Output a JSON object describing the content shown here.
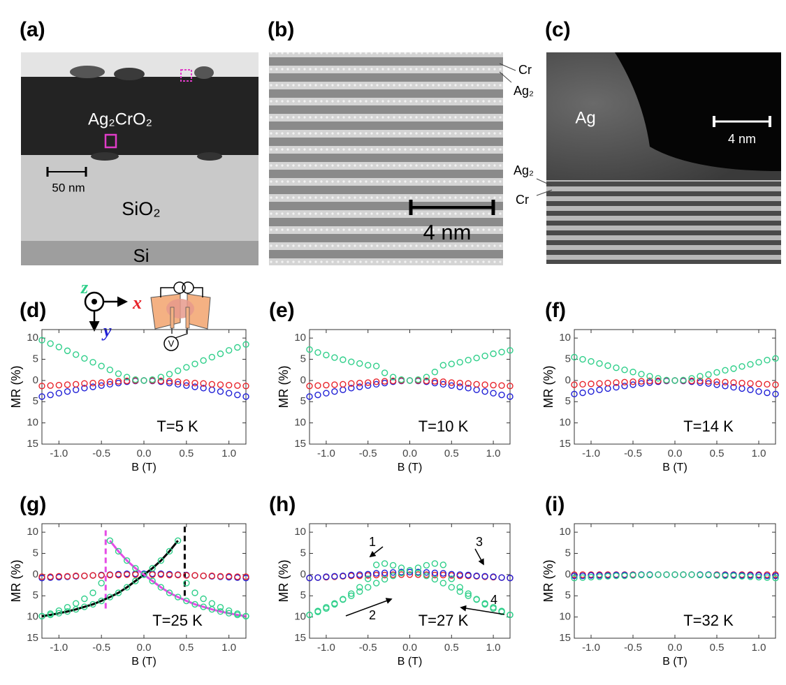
{
  "images": {
    "a": {
      "label": "(a)",
      "film": "Ag₂CrO₂",
      "scale": "50 nm",
      "substrate": "SiO₂",
      "base": "Si"
    },
    "b": {
      "label": "(b)",
      "layers": [
        "Cr",
        "Ag₂"
      ],
      "scale": "4 nm"
    },
    "c": {
      "label": "(c)",
      "metal": "Ag",
      "scale": "4 nm",
      "layers": [
        "Ag₂",
        "Cr"
      ]
    }
  },
  "chart_data": [
    {
      "type": "scatter",
      "label": "(d)",
      "annotation": "T=5 K",
      "ylabel": "MR (%)",
      "xlabel": "B (T)",
      "inset_labels": [
        "z",
        "x",
        "y",
        "V"
      ],
      "xlim": [
        -1.2,
        1.2
      ],
      "ylim": [
        -15,
        12
      ],
      "xticks": [
        {
          "value": -1,
          "label": "-1.0"
        },
        -0.5,
        {
          "value": 0,
          "label": "0.0"
        },
        0.5,
        {
          "value": 1,
          "label": "1.0"
        }
      ],
      "yticks": [
        10,
        5,
        0,
        {
          "value": -5,
          "label": "5"
        },
        {
          "value": -10,
          "label": "10"
        },
        {
          "value": -15,
          "label": "15"
        }
      ],
      "x": [
        -1.2,
        -1.1,
        -1.0,
        -0.9,
        -0.8,
        -0.7,
        -0.6,
        -0.5,
        -0.4,
        -0.3,
        -0.2,
        -0.1,
        0,
        0.1,
        0.2,
        0.3,
        0.4,
        0.5,
        0.6,
        0.7,
        0.8,
        0.9,
        1.0,
        1.1,
        1.2
      ],
      "series": [
        {
          "color": "#1f1fd6",
          "values": [
            -3.8,
            -3.4,
            -3.0,
            -2.6,
            -2.2,
            -1.8,
            -1.5,
            -1.2,
            -0.9,
            -0.6,
            -0.3,
            -0.1,
            0,
            -0.1,
            -0.3,
            -0.6,
            -0.9,
            -1.2,
            -1.5,
            -1.8,
            -2.2,
            -2.6,
            -3.0,
            -3.4,
            -3.8
          ]
        },
        {
          "color": "#e8232a",
          "values": [
            -1.3,
            -1.2,
            -1.1,
            -1.0,
            -0.9,
            -0.7,
            -0.6,
            -0.5,
            -0.3,
            -0.2,
            -0.1,
            0,
            0,
            0,
            -0.1,
            -0.2,
            -0.3,
            -0.5,
            -0.6,
            -0.7,
            -0.9,
            -1.0,
            -1.1,
            -1.2,
            -1.3
          ]
        },
        {
          "color": "#2fcf8a",
          "values": [
            9.5,
            8.7,
            7.9,
            7.0,
            6.1,
            5.2,
            4.3,
            3.4,
            2.5,
            1.6,
            0.8,
            0.2,
            0,
            0.2,
            0.8,
            1.5,
            2.3,
            3.1,
            3.9,
            4.7,
            5.5,
            6.3,
            7.1,
            7.8,
            8.5
          ]
        }
      ]
    },
    {
      "type": "scatter",
      "label": "(e)",
      "annotation": "T=10 K",
      "ylabel": "MR (%)",
      "xlabel": "B (T)",
      "xlim": [
        -1.2,
        1.2
      ],
      "ylim": [
        -15,
        12
      ],
      "xticks": [
        {
          "value": -1,
          "label": "-1.0"
        },
        -0.5,
        {
          "value": 0,
          "label": "0.0"
        },
        0.5,
        {
          "value": 1,
          "label": "1.0"
        }
      ],
      "yticks": [
        10,
        5,
        0,
        {
          "value": -5,
          "label": "5"
        },
        {
          "value": -10,
          "label": "10"
        },
        {
          "value": -15,
          "label": "15"
        }
      ],
      "x": [
        -1.2,
        -1.1,
        -1.0,
        -0.9,
        -0.8,
        -0.7,
        -0.6,
        -0.5,
        -0.4,
        -0.3,
        -0.2,
        -0.1,
        0,
        0.1,
        0.2,
        0.3,
        0.4,
        0.5,
        0.6,
        0.7,
        0.8,
        0.9,
        1.0,
        1.1,
        1.2
      ],
      "series": [
        {
          "color": "#1f1fd6",
          "values": [
            -3.8,
            -3.4,
            -3.0,
            -2.6,
            -2.2,
            -1.8,
            -1.5,
            -1.2,
            -0.9,
            -0.6,
            -0.3,
            -0.1,
            0,
            -0.1,
            -0.3,
            -0.6,
            -0.9,
            -1.2,
            -1.5,
            -1.8,
            -2.2,
            -2.6,
            -3.0,
            -3.4,
            -3.8
          ]
        },
        {
          "color": "#e8232a",
          "values": [
            -1.3,
            -1.2,
            -1.1,
            -1.0,
            -0.9,
            -0.7,
            -0.6,
            -0.5,
            -0.3,
            -0.2,
            -0.1,
            0,
            0,
            0,
            -0.1,
            -0.2,
            -0.3,
            -0.5,
            -0.6,
            -0.7,
            -0.9,
            -1.0,
            -1.1,
            -1.2,
            -1.3
          ]
        },
        {
          "color": "#2fcf8a",
          "values": [
            7.3,
            6.6,
            6.0,
            5.4,
            4.9,
            4.4,
            4.0,
            3.6,
            3.4,
            1.8,
            0.8,
            0.2,
            0,
            0.2,
            0.8,
            2.0,
            3.6,
            3.9,
            4.3,
            4.8,
            5.3,
            5.8,
            6.3,
            6.7,
            7.1
          ]
        }
      ]
    },
    {
      "type": "scatter",
      "label": "(f)",
      "annotation": "T=14 K",
      "ylabel": "MR (%)",
      "xlabel": "B (T)",
      "xlim": [
        -1.2,
        1.2
      ],
      "ylim": [
        -15,
        12
      ],
      "xticks": [
        {
          "value": -1,
          "label": "-1.0"
        },
        -0.5,
        {
          "value": 0,
          "label": "0.0"
        },
        0.5,
        {
          "value": 1,
          "label": "1.0"
        }
      ],
      "yticks": [
        10,
        5,
        0,
        {
          "value": -5,
          "label": "5"
        },
        {
          "value": -10,
          "label": "10"
        },
        {
          "value": -15,
          "label": "15"
        }
      ],
      "x": [
        -1.2,
        -1.1,
        -1.0,
        -0.9,
        -0.8,
        -0.7,
        -0.6,
        -0.5,
        -0.4,
        -0.3,
        -0.2,
        -0.1,
        0,
        0.1,
        0.2,
        0.3,
        0.4,
        0.5,
        0.6,
        0.7,
        0.8,
        0.9,
        1.0,
        1.1,
        1.2
      ],
      "series": [
        {
          "color": "#1f1fd6",
          "values": [
            -3.2,
            -2.9,
            -2.6,
            -2.2,
            -1.9,
            -1.6,
            -1.3,
            -1.0,
            -0.7,
            -0.5,
            -0.3,
            -0.1,
            0,
            -0.1,
            -0.3,
            -0.5,
            -0.7,
            -1.0,
            -1.3,
            -1.6,
            -1.9,
            -2.2,
            -2.6,
            -2.9,
            -3.2
          ]
        },
        {
          "color": "#e8232a",
          "values": [
            -1.0,
            -0.9,
            -0.8,
            -0.7,
            -0.6,
            -0.5,
            -0.4,
            -0.3,
            -0.2,
            -0.1,
            -0.1,
            0,
            0,
            0,
            -0.1,
            -0.1,
            -0.2,
            -0.3,
            -0.4,
            -0.5,
            -0.6,
            -0.7,
            -0.8,
            -0.9,
            -1.0
          ]
        },
        {
          "color": "#2fcf8a",
          "values": [
            5.5,
            5.0,
            4.5,
            4.0,
            3.5,
            3.0,
            2.5,
            2.0,
            1.5,
            1.0,
            0.5,
            0.1,
            0,
            0.1,
            0.5,
            1.0,
            1.4,
            1.9,
            2.4,
            2.8,
            3.3,
            3.8,
            4.3,
            4.8,
            5.2
          ]
        }
      ]
    },
    {
      "type": "scatter",
      "label": "(g)",
      "annotation": "T=25 K",
      "ylabel": "MR (%)",
      "xlabel": "B (T)",
      "xlim": [
        -1.2,
        1.2
      ],
      "ylim": [
        -15,
        12
      ],
      "xticks": [
        {
          "value": -1,
          "label": "-1.0"
        },
        -0.5,
        {
          "value": 0,
          "label": "0.0"
        },
        0.5,
        {
          "value": 1,
          "label": "1.0"
        }
      ],
      "yticks": [
        10,
        5,
        0,
        {
          "value": -5,
          "label": "5"
        },
        {
          "value": -10,
          "label": "10"
        },
        {
          "value": -15,
          "label": "15"
        }
      ],
      "x": [
        -1.2,
        -1.1,
        -1.0,
        -0.9,
        -0.8,
        -0.7,
        -0.6,
        -0.5,
        -0.4,
        -0.3,
        -0.2,
        -0.1,
        0,
        0.1,
        0.2,
        0.3,
        0.4,
        0.5,
        0.6,
        0.7,
        0.8,
        0.9,
        1.0,
        1.1,
        1.2
      ],
      "vlines": [
        {
          "x": -0.45,
          "y": [
            -8,
            11
          ],
          "color": "#e64ce6"
        },
        {
          "x": 0.48,
          "y": [
            -5,
            12
          ],
          "color": "#000000"
        }
      ],
      "series": [
        {
          "color": "#1f1fd6",
          "values": [
            -0.8,
            -0.7,
            -0.6,
            -0.5,
            -0.4,
            -0.3,
            -0.2,
            -0.1,
            0,
            0.1,
            0.2,
            0.2,
            0.2,
            0.2,
            0.2,
            0.1,
            0,
            -0.1,
            -0.2,
            -0.3,
            -0.4,
            -0.5,
            -0.6,
            -0.7,
            -0.8
          ]
        },
        {
          "color": "#e8232a",
          "values": [
            -0.5,
            -0.5,
            -0.4,
            -0.4,
            -0.3,
            -0.3,
            -0.2,
            -0.2,
            -0.1,
            -0.1,
            0,
            0,
            0,
            0,
            0,
            -0.1,
            -0.1,
            -0.2,
            -0.2,
            -0.3,
            -0.3,
            -0.4,
            -0.4,
            -0.5,
            -0.5
          ]
        },
        {
          "color": "#000000",
          "style": "line",
          "values": [
            -9.8,
            -9.5,
            -9.1,
            -8.7,
            -8.2,
            -7.6,
            -7.0,
            -6.2,
            -5.3,
            -4.3,
            -3.0,
            -1.5,
            0,
            1.5,
            3.3,
            5.5,
            8.0,
            null,
            null,
            null,
            null,
            null,
            null,
            null,
            null
          ]
        },
        {
          "color": "#e64ce6",
          "style": "line",
          "values": [
            null,
            null,
            null,
            null,
            null,
            null,
            null,
            null,
            8.0,
            5.5,
            3.3,
            1.5,
            0,
            -1.5,
            -3.0,
            -4.3,
            -5.3,
            -6.2,
            -7.0,
            -7.6,
            -8.2,
            -8.7,
            -9.1,
            -9.5,
            -9.8
          ]
        },
        {
          "color": "#2fcf8a",
          "values": [
            -9.8,
            -9.2,
            -8.5,
            -7.7,
            -6.8,
            -5.7,
            -4.3,
            -2.0,
            8.0,
            5.5,
            3.3,
            1.5,
            0,
            -1.5,
            -3.0,
            -4.3,
            -5.3,
            -6.2,
            -7.0,
            -7.6,
            -8.2,
            -8.7,
            -9.1,
            -9.5,
            -9.8
          ]
        },
        {
          "color": "#2fcf8a",
          "values": [
            -9.8,
            -9.5,
            -9.1,
            -8.7,
            -8.2,
            -7.6,
            -7.0,
            -6.2,
            -5.3,
            -4.3,
            -3.0,
            -1.5,
            0,
            1.5,
            3.3,
            5.5,
            8.0,
            -2.0,
            -4.3,
            -5.7,
            -6.8,
            -7.7,
            -8.5,
            -9.2,
            -9.8
          ]
        }
      ]
    },
    {
      "type": "scatter",
      "label": "(h)",
      "annotation": "T=27 K",
      "ylabel": "MR (%)",
      "xlabel": "B (T)",
      "arrow_labels": [
        "1",
        "2",
        "3",
        "4"
      ],
      "xlim": [
        -1.2,
        1.2
      ],
      "ylim": [
        -15,
        12
      ],
      "xticks": [
        {
          "value": -1,
          "label": "-1.0"
        },
        -0.5,
        {
          "value": 0,
          "label": "0.0"
        },
        0.5,
        {
          "value": 1,
          "label": "1.0"
        }
      ],
      "yticks": [
        10,
        5,
        0,
        {
          "value": -5,
          "label": "5"
        },
        {
          "value": -10,
          "label": "10"
        },
        {
          "value": -15,
          "label": "15"
        }
      ],
      "x": [
        -1.2,
        -1.1,
        -1.0,
        -0.9,
        -0.8,
        -0.7,
        -0.6,
        -0.5,
        -0.4,
        -0.3,
        -0.2,
        -0.1,
        0,
        0.1,
        0.2,
        0.3,
        0.4,
        0.5,
        0.6,
        0.7,
        0.8,
        0.9,
        1.0,
        1.1,
        1.2
      ],
      "series": [
        {
          "color": "#e8232a",
          "values": [
            -0.8,
            -0.7,
            -0.6,
            -0.5,
            -0.4,
            -0.3,
            -0.3,
            -0.2,
            -0.1,
            -0.1,
            0,
            0,
            0,
            0,
            0,
            -0.1,
            -0.1,
            -0.2,
            -0.3,
            -0.3,
            -0.4,
            -0.5,
            -0.6,
            -0.7,
            -0.8
          ]
        },
        {
          "color": "#1f1fd6",
          "values": [
            -0.8,
            -0.7,
            -0.5,
            -0.4,
            -0.3,
            -0.1,
            0,
            0.1,
            0.3,
            0.4,
            0.5,
            0.6,
            0.6,
            0.6,
            0.5,
            0.4,
            0.3,
            0.1,
            0,
            -0.1,
            -0.3,
            -0.4,
            -0.5,
            -0.7,
            -0.8
          ]
        },
        {
          "color": "#2fcf8a",
          "values": [
            -9.5,
            -8.6,
            -7.7,
            -6.8,
            -5.9,
            -5.0,
            -4.0,
            -3.0,
            -2.0,
            -1.1,
            -0.3,
            0.4,
            1.0,
            1.6,
            2.2,
            2.6,
            2.3,
            -1.0,
            -3.0,
            -4.5,
            -5.8,
            -7.0,
            -8.0,
            -8.8,
            -9.5
          ]
        },
        {
          "color": "#2fcf8a",
          "values": [
            -9.5,
            -8.8,
            -8.0,
            -7.0,
            -5.8,
            -4.5,
            -3.0,
            -1.0,
            2.3,
            2.6,
            2.2,
            1.6,
            1.0,
            0.4,
            -0.3,
            -1.1,
            -2.0,
            -3.0,
            -4.0,
            -5.0,
            -5.9,
            -6.8,
            -7.7,
            -8.6,
            -9.5
          ]
        }
      ]
    },
    {
      "type": "scatter",
      "label": "(i)",
      "annotation": "T=32 K",
      "ylabel": "MR (%)",
      "xlabel": "B (T)",
      "xlim": [
        -1.2,
        1.2
      ],
      "ylim": [
        -15,
        12
      ],
      "xticks": [
        {
          "value": -1,
          "label": "-1.0"
        },
        -0.5,
        {
          "value": 0,
          "label": "0.0"
        },
        0.5,
        {
          "value": 1,
          "label": "1.0"
        }
      ],
      "yticks": [
        10,
        5,
        0,
        {
          "value": -5,
          "label": "5"
        },
        {
          "value": -10,
          "label": "10"
        },
        {
          "value": -15,
          "label": "15"
        }
      ],
      "x": [
        -1.2,
        -1.1,
        -1.0,
        -0.9,
        -0.8,
        -0.7,
        -0.6,
        -0.5,
        -0.4,
        -0.3,
        -0.2,
        -0.1,
        0,
        0.1,
        0.2,
        0.3,
        0.4,
        0.5,
        0.6,
        0.7,
        0.8,
        0.9,
        1.0,
        1.1,
        1.2
      ],
      "series": [
        {
          "color": "#e8232a",
          "values": [
            0,
            0,
            0,
            0,
            0,
            0,
            0,
            0,
            0,
            0,
            0,
            0,
            0,
            0,
            0,
            0,
            0,
            0,
            0,
            0,
            0,
            0,
            0,
            0,
            0
          ]
        },
        {
          "color": "#1f1fd6",
          "values": [
            -0.3,
            -0.3,
            -0.2,
            -0.2,
            -0.2,
            -0.1,
            -0.1,
            -0.1,
            0,
            0,
            0,
            0,
            0,
            0,
            0,
            0,
            0,
            -0.1,
            -0.1,
            -0.1,
            -0.2,
            -0.2,
            -0.2,
            -0.3,
            -0.3
          ]
        },
        {
          "color": "#2fcf8a",
          "values": [
            -0.8,
            -0.7,
            -0.6,
            -0.5,
            -0.4,
            -0.3,
            -0.3,
            -0.2,
            -0.1,
            -0.1,
            0,
            0,
            0,
            0,
            0,
            -0.1,
            -0.1,
            -0.2,
            -0.3,
            -0.3,
            -0.4,
            -0.5,
            -0.6,
            -0.7,
            -0.8
          ]
        }
      ]
    }
  ]
}
